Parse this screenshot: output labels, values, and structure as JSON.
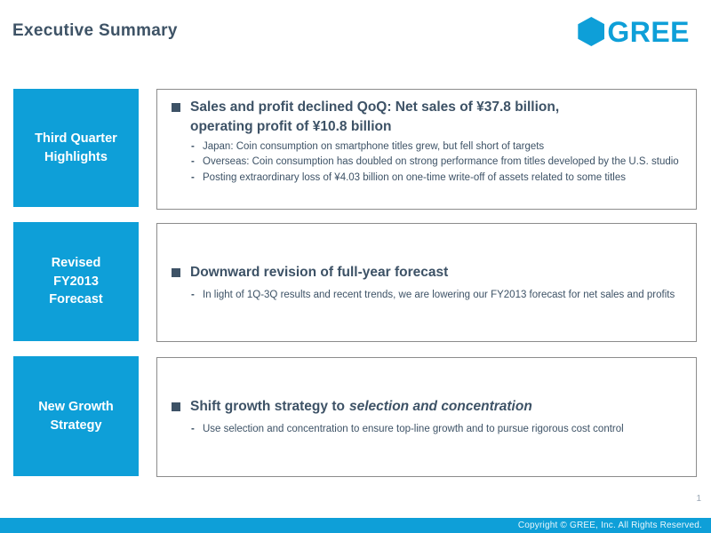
{
  "title": "Executive Summary",
  "logo": {
    "name": "GREE",
    "icon": "hexagon-icon",
    "brand_color": "#0E9FD8"
  },
  "colors": {
    "accent_blue": "#0E9FD8",
    "text_dark": "#3D5266",
    "box_border": "#8C8C8C"
  },
  "rows": [
    {
      "label_lines": [
        "Third Quarter",
        "Highlights"
      ],
      "heading": "Sales and profit declined QoQ: Net sales of ¥37.8 billion, operating profit of ¥10.8 billion",
      "bullets": [
        "Japan: Coin consumption on smartphone titles grew, but fell short of targets",
        "Overseas:  Coin consumption has doubled on strong performance from titles developed by the U.S. studio",
        "Posting extraordinary loss of ¥4.03 billion on one-time write-off of assets related to some titles"
      ]
    },
    {
      "label_lines": [
        "Revised",
        "FY2013",
        "Forecast"
      ],
      "heading": "Downward revision of full-year forecast",
      "bullets": [
        "In light of 1Q-3Q results and recent trends, we are lowering our FY2013 forecast for net sales and profits"
      ]
    },
    {
      "label_lines": [
        "New Growth",
        "Strategy"
      ],
      "heading_prefix": "Shift growth strategy to",
      "heading_italic": "selection and concentration",
      "bullets": [
        "Use selection and concentration to ensure top-line growth and to pursue rigorous cost control"
      ]
    }
  ],
  "page_number": "1",
  "footer": {
    "copyright": "Copyright © GREE, Inc. All Rights Reserved."
  }
}
